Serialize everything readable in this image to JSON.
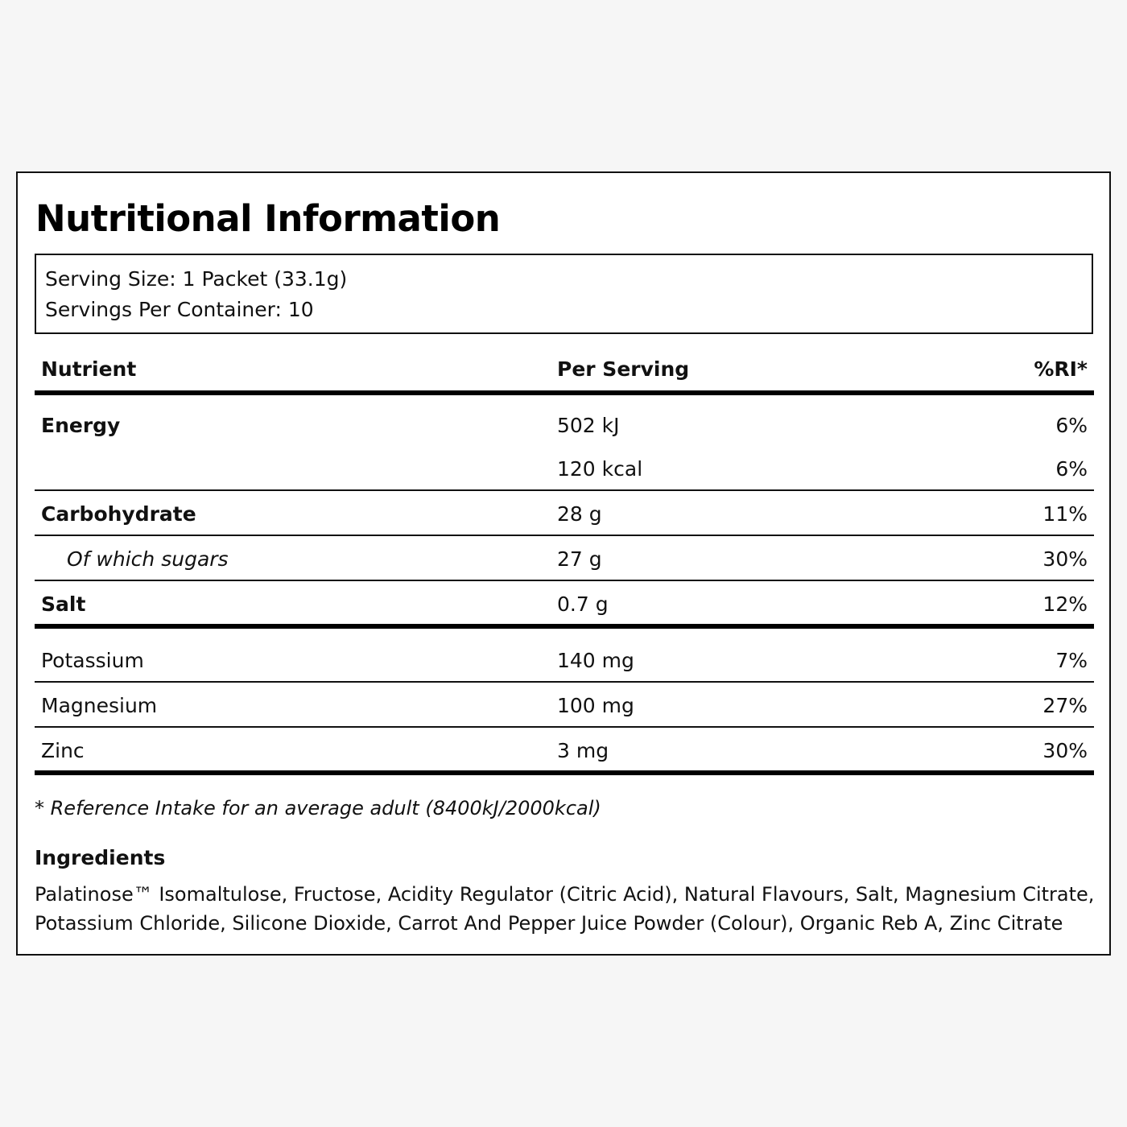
{
  "label": {
    "title": "Nutritional Information",
    "serving": {
      "size": "Serving Size: 1 Packet (33.1g)",
      "per_container": "Servings Per Container: 10"
    },
    "table": {
      "headers": {
        "nutrient": "Nutrient",
        "per_serving": "Per Serving",
        "ri": "%RI*"
      },
      "rows": [
        {
          "name": "Energy",
          "value": "502 kJ",
          "ri": "6%"
        },
        {
          "name": "",
          "value": "120 kcal",
          "ri": "6%"
        },
        {
          "name": "Carbohydrate",
          "value": "28 g",
          "ri": "11%"
        },
        {
          "name": "Of which sugars",
          "value": "27 g",
          "ri": "30%"
        },
        {
          "name": "Salt",
          "value": "0.7 g",
          "ri": "12%"
        },
        {
          "name": "Potassium",
          "value": "140 mg",
          "ri": "7%"
        },
        {
          "name": "Magnesium",
          "value": "100 mg",
          "ri": "27%"
        },
        {
          "name": "Zinc",
          "value": "3 mg",
          "ri": "30%"
        }
      ]
    },
    "footnote": "* Reference Intake for an average adult (8400kJ/2000kcal)",
    "ingredients": {
      "heading": "Ingredients",
      "text": "Palatinose™ Isomaltulose, Fructose, Acidity Regulator (Citric Acid), Natural Flavours, Salt, Magnesium Citrate, Potassium Chloride, Silicone Dioxide, Carrot And Pepper Juice Powder (Colour), Organic Reb A, Zinc Citrate"
    }
  }
}
